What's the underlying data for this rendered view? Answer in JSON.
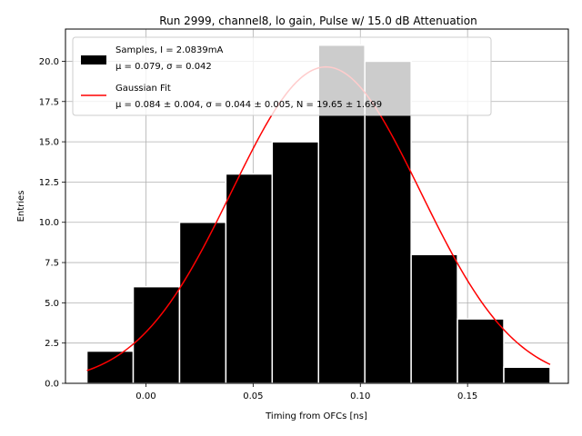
{
  "chart_data": {
    "type": "bar",
    "title": "Run 2999, channel8, lo gain, Pulse w/ 15.0 dB Attenuation",
    "xlabel": "Timing from OFCs [ns]",
    "ylabel": "Entries",
    "xlim": [
      -0.0375,
      0.197
    ],
    "ylim": [
      0,
      22
    ],
    "x_ticks": [
      0.0,
      0.05,
      0.1,
      0.15
    ],
    "x_tick_labels": [
      "0.00",
      "0.05",
      "0.10",
      "0.15"
    ],
    "y_ticks": [
      0.0,
      2.5,
      5.0,
      7.5,
      10.0,
      12.5,
      15.0,
      17.5,
      20.0
    ],
    "y_tick_labels": [
      "0.0",
      "2.5",
      "5.0",
      "7.5",
      "10.0",
      "12.5",
      "15.0",
      "17.5",
      "20.0"
    ],
    "grid": true,
    "legend_position": "top-left",
    "histogram": {
      "name": "Samples",
      "color": "#000000",
      "edgecolor": "#ffffff",
      "bin_edges": [
        -0.0275,
        -0.0059,
        0.0157,
        0.0373,
        0.0589,
        0.0805,
        0.1021,
        0.1237,
        0.1453,
        0.1669,
        0.1885
      ],
      "counts": [
        2,
        6,
        10,
        13,
        15,
        21,
        20,
        8,
        4,
        1
      ],
      "legend_line1": "Samples, I = 2.0839mA",
      "legend_line2": "μ = 0.079, σ = 0.042"
    },
    "fit": {
      "name": "Gaussian Fit",
      "color": "#ff0000",
      "mu": 0.084,
      "sigma": 0.044,
      "N": 19.65,
      "x_range": [
        -0.0275,
        0.1885
      ],
      "legend_line1": "Gaussian Fit",
      "legend_line2": "μ = 0.084 ± 0.004, σ = 0.044 ± 0.005, N = 19.65 ± 1.699"
    }
  }
}
